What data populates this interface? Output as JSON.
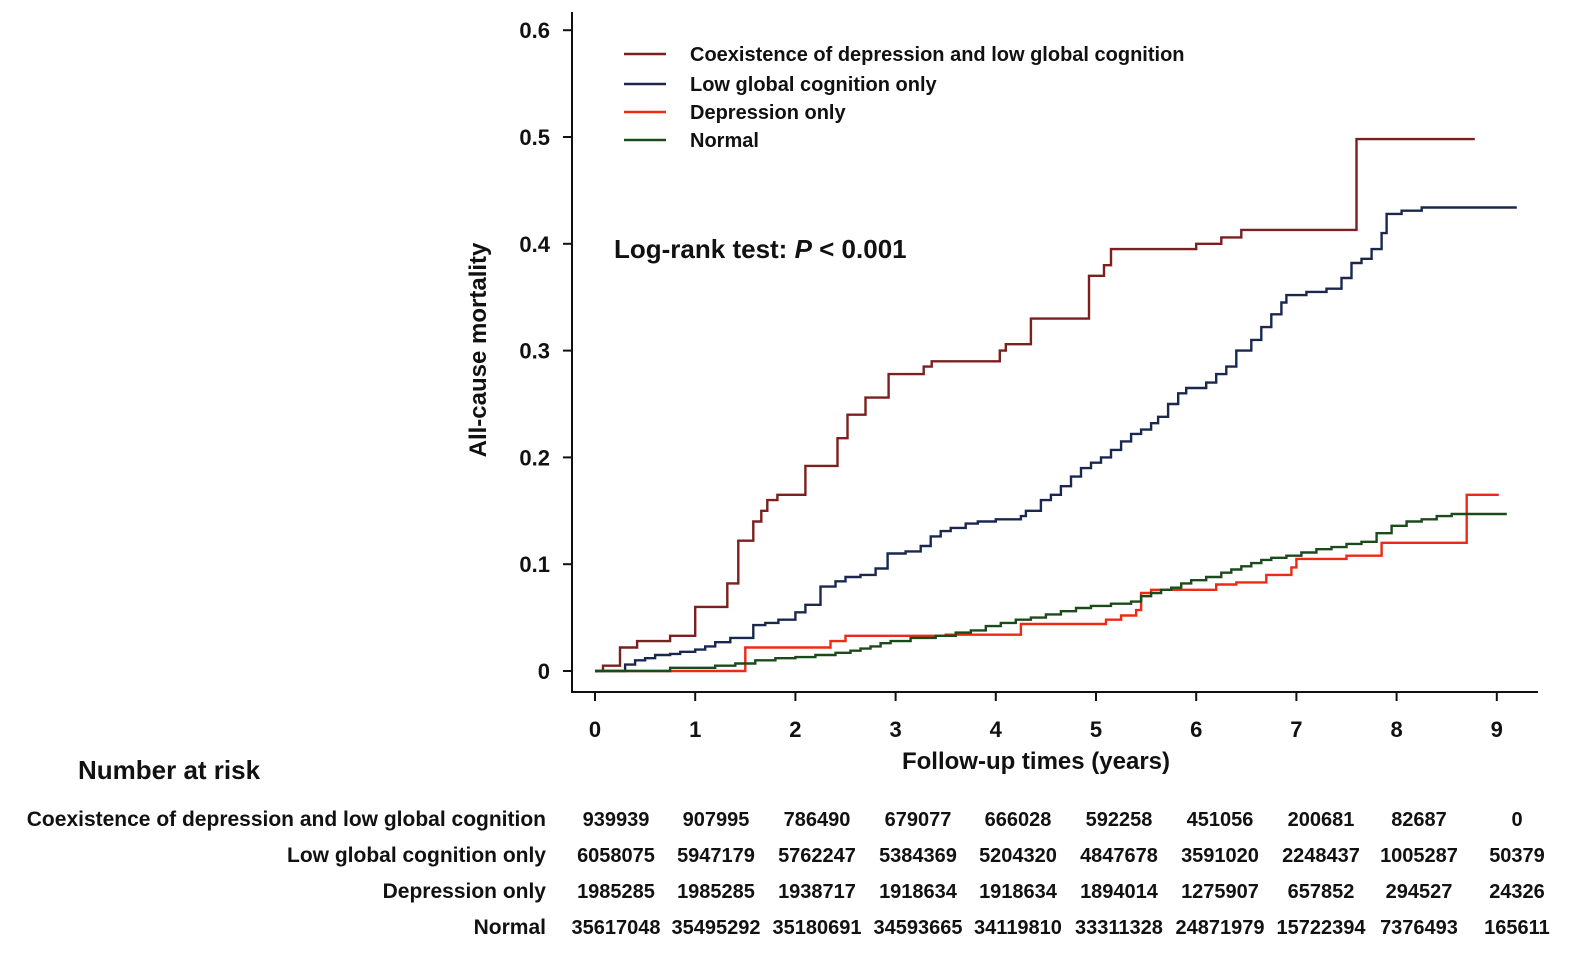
{
  "chart_data": {
    "type": "line",
    "subtype": "kaplan-meier-step",
    "title": "",
    "xlabel": "Follow-up times (years)",
    "ylabel": "All-cause mortality",
    "xlim": [
      0,
      9.2
    ],
    "ylim": [
      0,
      0.6
    ],
    "x_ticks": [
      "0",
      "1",
      "2",
      "3",
      "4",
      "5",
      "6",
      "7",
      "8",
      "9"
    ],
    "y_ticks": [
      "0",
      "0.1",
      "0.2",
      "0.3",
      "0.4",
      "0.5",
      "0.6"
    ],
    "legend_position": "top-left",
    "annotation": {
      "prefix": "Log-rank test: ",
      "italic": "P",
      "suffix": " < 0.001"
    },
    "series": [
      {
        "name": "Coexistence of depression and low global cognition",
        "color": "#7b1f1f",
        "points": [
          [
            0,
            0
          ],
          [
            0.08,
            0.005
          ],
          [
            0.25,
            0.022
          ],
          [
            0.42,
            0.028
          ],
          [
            0.75,
            0.033
          ],
          [
            1.0,
            0.06
          ],
          [
            1.32,
            0.082
          ],
          [
            1.43,
            0.122
          ],
          [
            1.58,
            0.14
          ],
          [
            1.66,
            0.15
          ],
          [
            1.72,
            0.16
          ],
          [
            1.82,
            0.165
          ],
          [
            2.1,
            0.192
          ],
          [
            2.42,
            0.218
          ],
          [
            2.52,
            0.24
          ],
          [
            2.7,
            0.256
          ],
          [
            2.93,
            0.278
          ],
          [
            3.28,
            0.285
          ],
          [
            3.36,
            0.29
          ],
          [
            4.04,
            0.3
          ],
          [
            4.1,
            0.306
          ],
          [
            4.35,
            0.33
          ],
          [
            4.93,
            0.37
          ],
          [
            5.08,
            0.38
          ],
          [
            5.15,
            0.395
          ],
          [
            6.0,
            0.4
          ],
          [
            6.25,
            0.406
          ],
          [
            6.45,
            0.413
          ],
          [
            7.6,
            0.498
          ],
          [
            8.78,
            0.498
          ]
        ]
      },
      {
        "name": "Low global cognition only",
        "color": "#1a2850",
        "points": [
          [
            0,
            0
          ],
          [
            0.3,
            0.006
          ],
          [
            0.4,
            0.01
          ],
          [
            0.5,
            0.012
          ],
          [
            0.6,
            0.015
          ],
          [
            0.75,
            0.016
          ],
          [
            0.85,
            0.018
          ],
          [
            1.0,
            0.02
          ],
          [
            1.1,
            0.023
          ],
          [
            1.2,
            0.027
          ],
          [
            1.35,
            0.031
          ],
          [
            1.58,
            0.043
          ],
          [
            1.7,
            0.045
          ],
          [
            1.83,
            0.048
          ],
          [
            2.0,
            0.055
          ],
          [
            2.1,
            0.062
          ],
          [
            2.25,
            0.079
          ],
          [
            2.4,
            0.084
          ],
          [
            2.5,
            0.088
          ],
          [
            2.65,
            0.09
          ],
          [
            2.8,
            0.096
          ],
          [
            2.92,
            0.11
          ],
          [
            3.1,
            0.112
          ],
          [
            3.25,
            0.117
          ],
          [
            3.35,
            0.126
          ],
          [
            3.45,
            0.131
          ],
          [
            3.55,
            0.134
          ],
          [
            3.7,
            0.138
          ],
          [
            3.82,
            0.14
          ],
          [
            4.0,
            0.142
          ],
          [
            4.25,
            0.145
          ],
          [
            4.3,
            0.15
          ],
          [
            4.45,
            0.16
          ],
          [
            4.55,
            0.165
          ],
          [
            4.65,
            0.173
          ],
          [
            4.75,
            0.182
          ],
          [
            4.85,
            0.19
          ],
          [
            4.95,
            0.195
          ],
          [
            5.05,
            0.2
          ],
          [
            5.15,
            0.207
          ],
          [
            5.25,
            0.215
          ],
          [
            5.35,
            0.222
          ],
          [
            5.45,
            0.226
          ],
          [
            5.55,
            0.232
          ],
          [
            5.62,
            0.238
          ],
          [
            5.72,
            0.25
          ],
          [
            5.82,
            0.26
          ],
          [
            5.9,
            0.265
          ],
          [
            6.1,
            0.27
          ],
          [
            6.2,
            0.278
          ],
          [
            6.3,
            0.285
          ],
          [
            6.4,
            0.3
          ],
          [
            6.55,
            0.31
          ],
          [
            6.65,
            0.322
          ],
          [
            6.75,
            0.334
          ],
          [
            6.85,
            0.345
          ],
          [
            6.9,
            0.352
          ],
          [
            7.1,
            0.355
          ],
          [
            7.3,
            0.358
          ],
          [
            7.45,
            0.368
          ],
          [
            7.55,
            0.382
          ],
          [
            7.65,
            0.386
          ],
          [
            7.75,
            0.395
          ],
          [
            7.85,
            0.41
          ],
          [
            7.9,
            0.428
          ],
          [
            8.05,
            0.431
          ],
          [
            8.25,
            0.434
          ],
          [
            9.2,
            0.434
          ]
        ]
      },
      {
        "name": "Depression only",
        "color": "#ee2a14",
        "points": [
          [
            0,
            0
          ],
          [
            1.5,
            0.022
          ],
          [
            2.35,
            0.028
          ],
          [
            2.5,
            0.033
          ],
          [
            3.5,
            0.034
          ],
          [
            4.25,
            0.044
          ],
          [
            5.1,
            0.048
          ],
          [
            5.25,
            0.052
          ],
          [
            5.4,
            0.057
          ],
          [
            5.45,
            0.073
          ],
          [
            5.55,
            0.076
          ],
          [
            6.2,
            0.081
          ],
          [
            6.4,
            0.083
          ],
          [
            6.7,
            0.09
          ],
          [
            6.95,
            0.097
          ],
          [
            7.0,
            0.105
          ],
          [
            7.5,
            0.108
          ],
          [
            7.85,
            0.12
          ],
          [
            8.7,
            0.165
          ],
          [
            9.02,
            0.165
          ]
        ]
      },
      {
        "name": "Normal",
        "color": "#1b4a1b",
        "points": [
          [
            0,
            0
          ],
          [
            0.75,
            0.003
          ],
          [
            1.2,
            0.005
          ],
          [
            1.4,
            0.007
          ],
          [
            1.6,
            0.01
          ],
          [
            1.8,
            0.012
          ],
          [
            2.0,
            0.013
          ],
          [
            2.2,
            0.015
          ],
          [
            2.4,
            0.017
          ],
          [
            2.55,
            0.019
          ],
          [
            2.65,
            0.021
          ],
          [
            2.75,
            0.023
          ],
          [
            2.85,
            0.026
          ],
          [
            2.95,
            0.028
          ],
          [
            3.15,
            0.031
          ],
          [
            3.4,
            0.033
          ],
          [
            3.6,
            0.036
          ],
          [
            3.75,
            0.038
          ],
          [
            3.9,
            0.042
          ],
          [
            4.05,
            0.045
          ],
          [
            4.2,
            0.048
          ],
          [
            4.35,
            0.05
          ],
          [
            4.5,
            0.053
          ],
          [
            4.65,
            0.056
          ],
          [
            4.8,
            0.059
          ],
          [
            4.95,
            0.061
          ],
          [
            5.15,
            0.063
          ],
          [
            5.35,
            0.065
          ],
          [
            5.45,
            0.07
          ],
          [
            5.55,
            0.073
          ],
          [
            5.65,
            0.076
          ],
          [
            5.75,
            0.078
          ],
          [
            5.85,
            0.082
          ],
          [
            5.95,
            0.085
          ],
          [
            6.1,
            0.088
          ],
          [
            6.25,
            0.092
          ],
          [
            6.35,
            0.095
          ],
          [
            6.45,
            0.098
          ],
          [
            6.55,
            0.101
          ],
          [
            6.65,
            0.104
          ],
          [
            6.75,
            0.106
          ],
          [
            6.9,
            0.108
          ],
          [
            7.05,
            0.111
          ],
          [
            7.2,
            0.114
          ],
          [
            7.35,
            0.116
          ],
          [
            7.5,
            0.119
          ],
          [
            7.65,
            0.121
          ],
          [
            7.8,
            0.129
          ],
          [
            7.95,
            0.136
          ],
          [
            8.1,
            0.14
          ],
          [
            8.25,
            0.142
          ],
          [
            8.4,
            0.145
          ],
          [
            8.55,
            0.147
          ],
          [
            9.1,
            0.147
          ]
        ]
      }
    ]
  },
  "risk_table": {
    "title": "Number at risk",
    "rows": [
      {
        "label": "Coexistence of depression and low global cognition",
        "values": [
          "939939",
          "907995",
          "786490",
          "679077",
          "666028",
          "592258",
          "451056",
          "200681",
          "82687",
          "0"
        ]
      },
      {
        "label": "Low global cognition only",
        "values": [
          "6058075",
          "5947179",
          "5762247",
          "5384369",
          "5204320",
          "4847678",
          "3591020",
          "2248437",
          "1005287",
          "50379"
        ]
      },
      {
        "label": "Depression only",
        "values": [
          "1985285",
          "1985285",
          "1938717",
          "1918634",
          "1918634",
          "1894014",
          "1275907",
          "657852",
          "294527",
          "24326"
        ]
      },
      {
        "label": "Normal",
        "values": [
          "35617048",
          "35495292",
          "35180691",
          "34593665",
          "34119810",
          "33311328",
          "24871979",
          "15722394",
          "7376493",
          "165611"
        ]
      }
    ]
  }
}
